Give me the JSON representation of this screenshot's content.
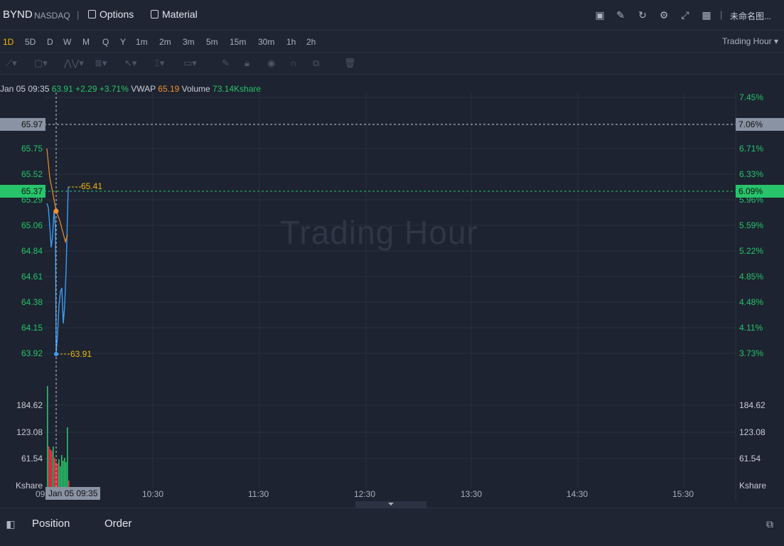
{
  "header": {
    "symbol": "BYND",
    "exchange": "NASDAQ",
    "separator": "|",
    "options_label": "Options",
    "material_label": "Material",
    "layout_name": "未命名图..."
  },
  "timeframes": [
    "1D",
    "5D",
    "D",
    "W",
    "M",
    "Q",
    "Y",
    "1m",
    "2m",
    "3m",
    "5m",
    "15m",
    "30m",
    "1h",
    "2h"
  ],
  "active_timeframe": "1D",
  "session_selector": "Trading Hour ▾",
  "legend": {
    "datetime": "Jan 05 09:35",
    "price": "63.91",
    "change": "+2.29",
    "change_pct": "+3.71%",
    "vwap_label": "VWAP",
    "vwap_value": "65.19",
    "volume_label": "Volume",
    "volume_value": "73.14Kshare"
  },
  "price_axis_left": [
    "65.75",
    "65.52",
    "65.29",
    "65.06",
    "64.84",
    "64.61",
    "64.38",
    "64.15",
    "63.92"
  ],
  "price_axis_right": [
    "7.45%",
    "6.71%",
    "6.33%",
    "5.96%",
    "5.59%",
    "5.22%",
    "4.85%",
    "4.48%",
    "4.11%",
    "3.73%"
  ],
  "crosshair_price": "65.97",
  "crosshair_pct": "7.06%",
  "last_price": "65.37",
  "last_pct": "6.09%",
  "high_marker": "65.41",
  "low_marker": "63.91",
  "volume_axis": [
    "184.62",
    "123.08",
    "61.54"
  ],
  "volume_unit": "Kshare",
  "time_axis": [
    "09",
    "10:30",
    "11:30",
    "12:30",
    "13:30",
    "14:30",
    "15:30"
  ],
  "crosshair_time": "Jan 05 09:35",
  "watermark": "Trading Hour",
  "bottom": {
    "position_label": "Position",
    "order_label": "Order"
  },
  "colors": {
    "up": "#27c46b",
    "down": "#f23645",
    "price_line": "#3d9df5",
    "vwap_line": "#f0902b",
    "active": "#f0b90b"
  }
}
